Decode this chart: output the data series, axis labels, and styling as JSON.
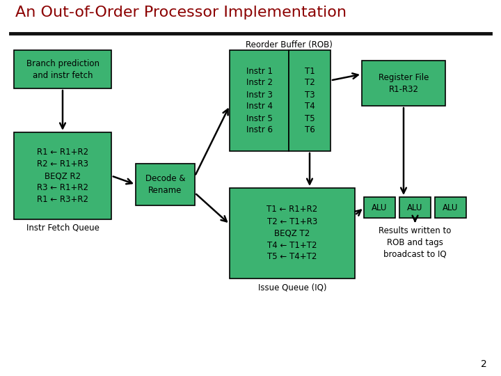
{
  "title": "An Out-of-Order Processor Implementation",
  "title_color": "#8B0000",
  "background_color": "#ffffff",
  "box_color": "#3CB371",
  "box_edge_color": "#000000",
  "arrow_color": "#000000",
  "text_color": "#000000",
  "rob_label": "Reorder Buffer (ROB)",
  "branch_box": "Branch prediction\nand instr fetch",
  "fetch_queue_box": "R1 ← R1+R2\nR2 ← R1+R3\nBEQZ R2\nR3 ← R1+R2\nR1 ← R3+R2",
  "fetch_queue_label": "Instr Fetch Queue",
  "decode_box": "Decode &\nRename",
  "rob_instr_col": "Instr 1\nInstr 2\nInstr 3\nInstr 4\nInstr 5\nInstr 6",
  "rob_tag_col": "T1\nT2\nT3\nT4\nT5\nT6",
  "reg_file_box": "Register File\nR1-R32",
  "iq_box": "T1 ← R1+R2\nT2 ← T1+R3\nBEQZ T2\nT4 ← T1+T2\nT5 ← T4+T2",
  "iq_label": "Issue Queue (IQ)",
  "alu1": "ALU",
  "alu2": "ALU",
  "alu3": "ALU",
  "results_text": "Results written to\nROB and tags\nbroadcast to IQ",
  "page_num": "2",
  "title_fontsize": 16,
  "body_fontsize": 8.5,
  "label_fontsize": 8.5
}
